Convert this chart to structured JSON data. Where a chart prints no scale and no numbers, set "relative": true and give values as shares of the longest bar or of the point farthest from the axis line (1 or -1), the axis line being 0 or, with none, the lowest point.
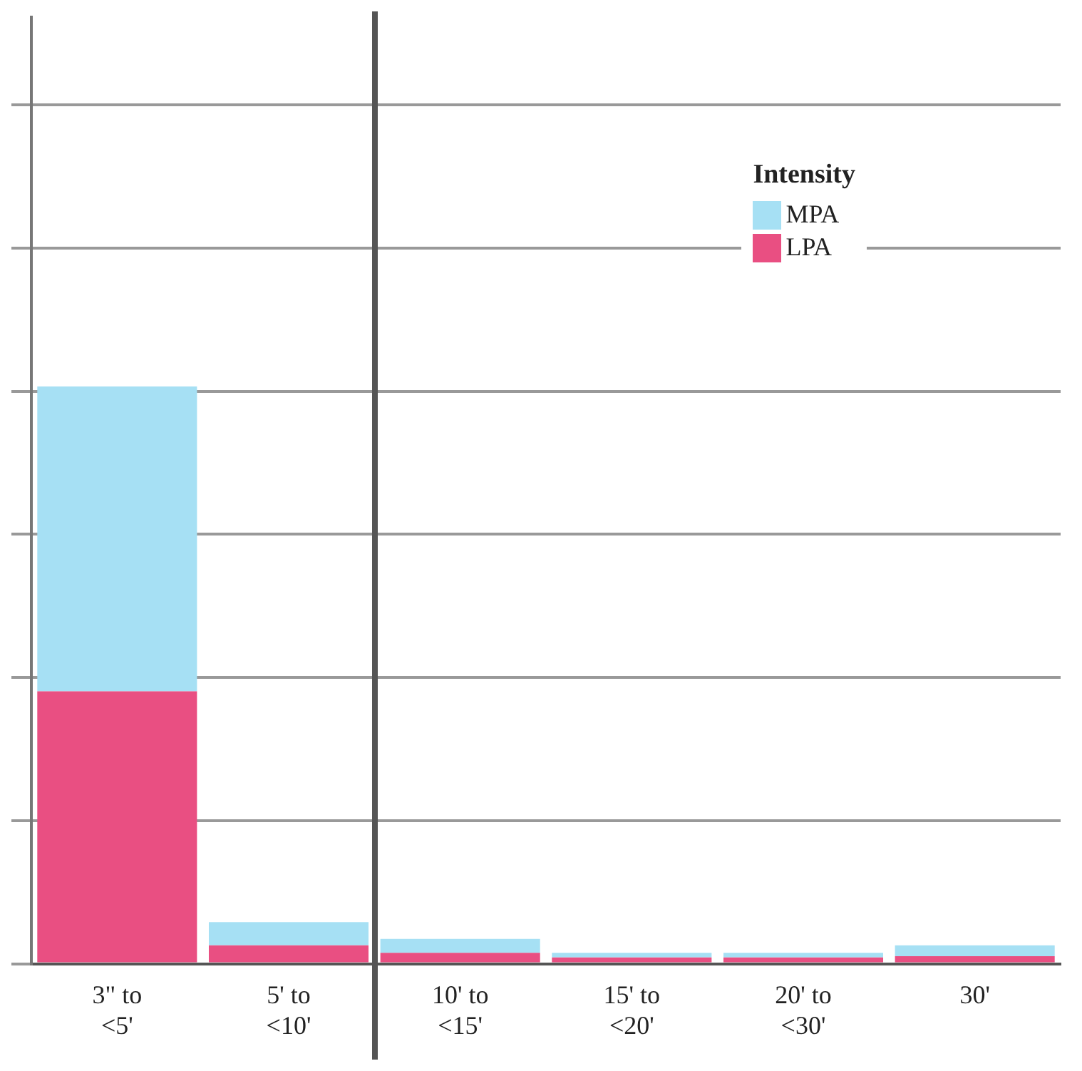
{
  "chart_data": {
    "type": "bar",
    "stacked": true,
    "relative": true,
    "legend_title": "Intensity",
    "legend": "top right",
    "grid": "y",
    "categories": [
      "3\" to <5'",
      "5' to <10'",
      "10' to <15'",
      "15' to <20'",
      "20' to <30'",
      "30'"
    ],
    "series": [
      {
        "name": "LPA",
        "color": "#e94f82",
        "values": [
          0.472,
          0.032,
          0.019,
          0.011,
          0.011,
          0.013
        ]
      },
      {
        "name": "MPA",
        "color": "#a6e0f4",
        "values": [
          0.528,
          0.04,
          0.024,
          0.008,
          0.008,
          0.019
        ]
      }
    ]
  }
}
